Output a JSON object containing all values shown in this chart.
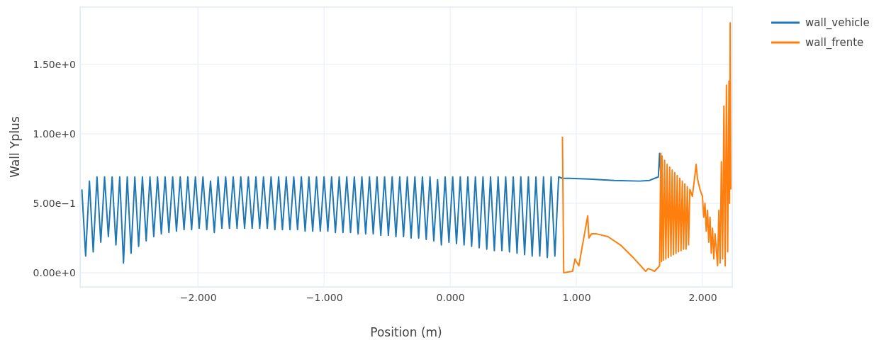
{
  "chart_data": {
    "type": "line",
    "xlabel": "Position (m)",
    "ylabel": "Wall Yplus",
    "xlim": [
      -2.934,
      2.236
    ],
    "ylim": [
      -0.102,
      1.913
    ],
    "xticks": [
      {
        "value": -2,
        "label": "−2.000"
      },
      {
        "value": -1,
        "label": "−1.000"
      },
      {
        "value": 0,
        "label": "0.000"
      },
      {
        "value": 1,
        "label": "1.000"
      },
      {
        "value": 2,
        "label": "2.000"
      }
    ],
    "yticks": [
      {
        "value": 0,
        "label": "0.00e+0"
      },
      {
        "value": 0.5,
        "label": "5.00e−1"
      },
      {
        "value": 1,
        "label": "1.00e+0"
      },
      {
        "value": 1.5,
        "label": "1.50e+0"
      }
    ],
    "grid": true,
    "legend": "top right",
    "line_style": "solid",
    "marker": "none",
    "series": [
      {
        "name": "wall_vehicle",
        "color": "#1f77b4",
        "x": [
          -2.92,
          -2.89,
          -2.86,
          -2.83,
          -2.8,
          -2.77,
          -2.74,
          -2.71,
          -2.68,
          -2.65,
          -2.62,
          -2.59,
          -2.56,
          -2.53,
          -2.5,
          -2.47,
          -2.44,
          -2.41,
          -2.38,
          -2.35,
          -2.32,
          -2.29,
          -2.26,
          -2.23,
          -2.2,
          -2.17,
          -2.14,
          -2.11,
          -2.08,
          -2.05,
          -2.02,
          -1.99,
          -1.96,
          -1.93,
          -1.9,
          -1.87,
          -1.84,
          -1.81,
          -1.78,
          -1.75,
          -1.72,
          -1.69,
          -1.66,
          -1.63,
          -1.6,
          -1.57,
          -1.54,
          -1.51,
          -1.48,
          -1.45,
          -1.42,
          -1.39,
          -1.36,
          -1.33,
          -1.3,
          -1.27,
          -1.24,
          -1.21,
          -1.18,
          -1.15,
          -1.12,
          -1.09,
          -1.06,
          -1.03,
          -1,
          -0.97,
          -0.94,
          -0.91,
          -0.88,
          -0.85,
          -0.82,
          -0.79,
          -0.76,
          -0.73,
          -0.7,
          -0.67,
          -0.64,
          -0.61,
          -0.58,
          -0.55,
          -0.52,
          -0.49,
          -0.46,
          -0.43,
          -0.4,
          -0.37,
          -0.34,
          -0.31,
          -0.28,
          -0.25,
          -0.22,
          -0.19,
          -0.16,
          -0.13,
          -0.1,
          -0.07,
          -0.04,
          -0.01,
          0.02,
          0.05,
          0.08,
          0.11,
          0.14,
          0.17,
          0.2,
          0.23,
          0.26,
          0.29,
          0.32,
          0.35,
          0.38,
          0.41,
          0.44,
          0.47,
          0.5,
          0.53,
          0.56,
          0.59,
          0.62,
          0.65,
          0.68,
          0.71,
          0.74,
          0.77,
          0.8,
          0.83,
          0.86,
          0.89,
          0.95,
          1.1,
          1.3,
          1.5,
          1.58,
          1.62,
          1.65,
          1.66,
          1.67
        ],
        "values": [
          0.6,
          0.12,
          0.66,
          0.15,
          0.69,
          0.22,
          0.69,
          0.26,
          0.69,
          0.2,
          0.69,
          0.07,
          0.69,
          0.14,
          0.69,
          0.19,
          0.69,
          0.23,
          0.69,
          0.26,
          0.69,
          0.28,
          0.69,
          0.29,
          0.69,
          0.3,
          0.69,
          0.31,
          0.69,
          0.31,
          0.69,
          0.32,
          0.69,
          0.31,
          0.66,
          0.29,
          0.69,
          0.32,
          0.69,
          0.32,
          0.69,
          0.32,
          0.69,
          0.32,
          0.69,
          0.32,
          0.69,
          0.32,
          0.69,
          0.32,
          0.69,
          0.31,
          0.69,
          0.31,
          0.69,
          0.31,
          0.69,
          0.31,
          0.69,
          0.3,
          0.69,
          0.3,
          0.69,
          0.3,
          0.69,
          0.3,
          0.69,
          0.29,
          0.69,
          0.29,
          0.69,
          0.29,
          0.69,
          0.28,
          0.69,
          0.28,
          0.69,
          0.28,
          0.69,
          0.27,
          0.69,
          0.27,
          0.69,
          0.26,
          0.69,
          0.26,
          0.69,
          0.25,
          0.69,
          0.25,
          0.69,
          0.24,
          0.69,
          0.23,
          0.67,
          0.2,
          0.69,
          0.22,
          0.69,
          0.21,
          0.69,
          0.2,
          0.69,
          0.19,
          0.69,
          0.18,
          0.69,
          0.17,
          0.69,
          0.16,
          0.69,
          0.16,
          0.69,
          0.15,
          0.69,
          0.14,
          0.69,
          0.13,
          0.69,
          0.12,
          0.69,
          0.12,
          0.69,
          0.11,
          0.69,
          0.12,
          0.69,
          0.68,
          0.68,
          0.675,
          0.665,
          0.66,
          0.665,
          0.68,
          0.69,
          0.86,
          0.7
        ]
      },
      {
        "name": "wall_frente",
        "color": "#ff7f0e",
        "x": [
          0.89,
          0.9,
          0.97,
          0.99,
          1,
          1.02,
          1.09,
          1.1,
          1.12,
          1.16,
          1.25,
          1.35,
          1.45,
          1.55,
          1.57,
          1.6,
          1.62,
          1.66,
          1.67,
          1.675,
          1.68,
          1.69,
          1.7,
          1.71,
          1.72,
          1.73,
          1.74,
          1.75,
          1.76,
          1.77,
          1.78,
          1.79,
          1.8,
          1.81,
          1.82,
          1.83,
          1.84,
          1.85,
          1.86,
          1.87,
          1.88,
          1.89,
          1.9,
          1.92,
          1.95,
          1.96,
          1.98,
          2,
          2.01,
          2.02,
          2.03,
          2.04,
          2.05,
          2.06,
          2.07,
          2.08,
          2.09,
          2.1,
          2.12,
          2.13,
          2.14,
          2.15,
          2.16,
          2.17,
          2.18,
          2.19,
          2.2,
          2.21,
          2.215,
          2.22,
          2.225
        ],
        "values": [
          0.98,
          0,
          0.01,
          0.1,
          0.08,
          0.05,
          0.41,
          0.25,
          0.28,
          0.28,
          0.26,
          0.2,
          0.11,
          0.01,
          0.03,
          0.02,
          0.01,
          0.05,
          0.86,
          0.08,
          0.84,
          0.09,
          0.81,
          0.1,
          0.78,
          0.11,
          0.76,
          0.12,
          0.74,
          0.13,
          0.72,
          0.14,
          0.7,
          0.15,
          0.68,
          0.16,
          0.66,
          0.17,
          0.64,
          0.17,
          0.62,
          0.2,
          0.6,
          0.55,
          0.78,
          0.68,
          0.6,
          0.55,
          0.4,
          0.5,
          0.3,
          0.45,
          0.22,
          0.4,
          0.14,
          0.32,
          0.1,
          0.28,
          0.05,
          0.45,
          0.07,
          0.8,
          0.1,
          1.2,
          0.05,
          1.35,
          0.15,
          1.38,
          0.5,
          1.8,
          0.6
        ]
      }
    ]
  }
}
